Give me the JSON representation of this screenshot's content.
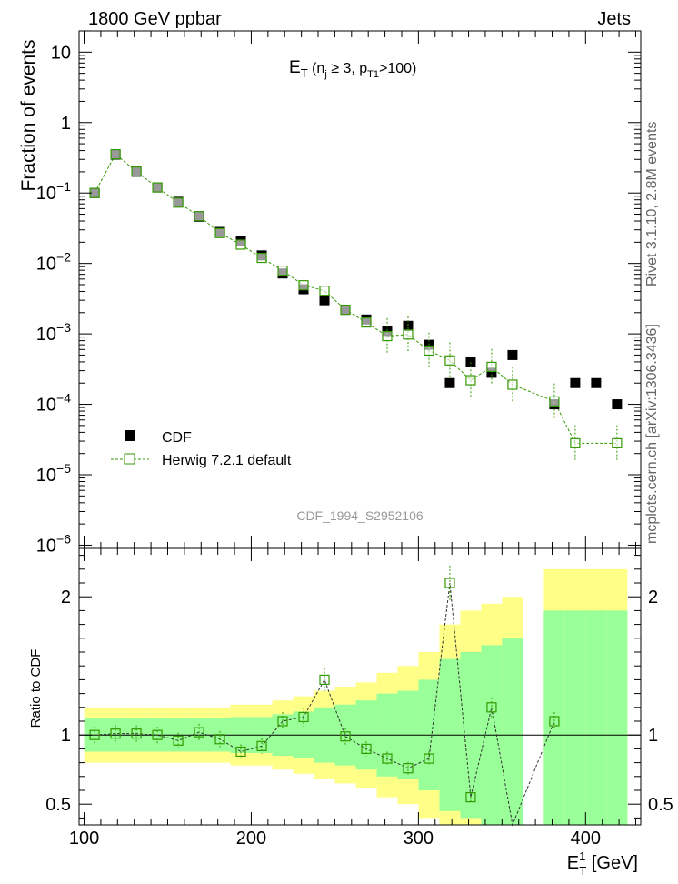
{
  "header": {
    "left": "1800 GeV ppbar",
    "right": "Jets"
  },
  "side_labels": {
    "rivet": "Rivet 3.1.10,  2.8M events",
    "mcplots": "mcplots.cern.ch [arXiv:1306.3436]"
  },
  "watermark": "CDF_1994_S2952106",
  "colors": {
    "data": "#000000",
    "mc": "#339900",
    "band_inner": "#99ff99",
    "band_outer": "#ffff88"
  },
  "chart_data": [
    {
      "type": "scatter",
      "panel": "main",
      "title": "E_T (n_j ≥ 3, p_T1>100)",
      "ylabel": "Fraction of events",
      "yscale": "log",
      "ylim": [
        9e-07,
        20
      ],
      "xlim": [
        97,
        433
      ],
      "ytick_labels": [
        {
          "base": "10",
          "exp": ""
        },
        {
          "base": "1",
          "exp": ""
        },
        {
          "base": "10",
          "exp": "−1"
        },
        {
          "base": "10",
          "exp": "−2"
        },
        {
          "base": "10",
          "exp": "−3"
        },
        {
          "base": "10",
          "exp": "−4"
        },
        {
          "base": "10",
          "exp": "−5"
        },
        {
          "base": "10",
          "exp": "−6"
        }
      ],
      "legend": [
        "CDF",
        "Herwig 7.2.1 default"
      ],
      "x": [
        106.3,
        118.8,
        131.3,
        143.8,
        156.3,
        168.8,
        181.3,
        193.8,
        206.3,
        218.8,
        231.3,
        243.8,
        256.3,
        268.8,
        281.3,
        293.8,
        306.3,
        318.8,
        331.3,
        343.8,
        356.3,
        381.3,
        393.8,
        406.3,
        418.8
      ],
      "series": [
        {
          "name": "CDF",
          "values": [
            0.1,
            0.35,
            0.2,
            0.12,
            0.075,
            0.046,
            0.028,
            0.021,
            0.013,
            0.0072,
            0.0043,
            0.003,
            0.0022,
            0.0016,
            0.0011,
            0.0013,
            0.0007,
            0.0002,
            0.0004,
            0.00028,
            0.0005,
            0.0001,
            0.0002,
            0.0002,
            0.0001
          ]
        },
        {
          "name": "Herwig 7.2.1 default",
          "values": [
            0.1,
            0.355,
            0.202,
            0.12,
            0.073,
            0.047,
            0.027,
            0.0185,
            0.012,
            0.0079,
            0.0049,
            0.0041,
            0.0022,
            0.00145,
            0.00093,
            0.00098,
            0.00058,
            0.00042,
            0.00022,
            0.00034,
            0.00019,
            0.00011,
            2.8e-05,
            null,
            2.8e-05
          ]
        }
      ]
    },
    {
      "type": "scatter",
      "panel": "ratio",
      "ylabel": "Ratio to CDF",
      "xlabel": "E_T^1 [GeV]",
      "ylim": [
        0.35,
        2.35
      ],
      "xlim": [
        97,
        433
      ],
      "xticks": [
        100,
        200,
        300,
        400
      ],
      "yticks": [
        0.5,
        1,
        2
      ],
      "values": [
        1.0,
        1.01,
        1.01,
        1.0,
        0.96,
        1.02,
        0.97,
        0.88,
        0.92,
        1.1,
        1.13,
        1.4,
        0.99,
        0.9,
        0.83,
        0.76,
        0.83,
        2.1,
        0.55,
        1.2,
        0.3,
        1.1,
        null,
        null,
        null
      ],
      "band_inner": [
        0.12,
        0.12,
        0.12,
        0.12,
        0.12,
        0.12,
        0.12,
        0.13,
        0.13,
        0.15,
        0.17,
        0.2,
        0.22,
        0.25,
        0.3,
        0.32,
        0.4,
        0.55,
        0.6,
        0.65,
        0.7,
        0.9,
        0.9,
        0.9,
        0.9
      ],
      "band_outer": [
        0.2,
        0.2,
        0.2,
        0.2,
        0.2,
        0.2,
        0.2,
        0.22,
        0.22,
        0.25,
        0.28,
        0.32,
        0.35,
        0.38,
        0.45,
        0.5,
        0.6,
        0.8,
        0.9,
        0.95,
        1.0,
        1.2,
        1.2,
        1.2,
        1.2
      ]
    }
  ]
}
